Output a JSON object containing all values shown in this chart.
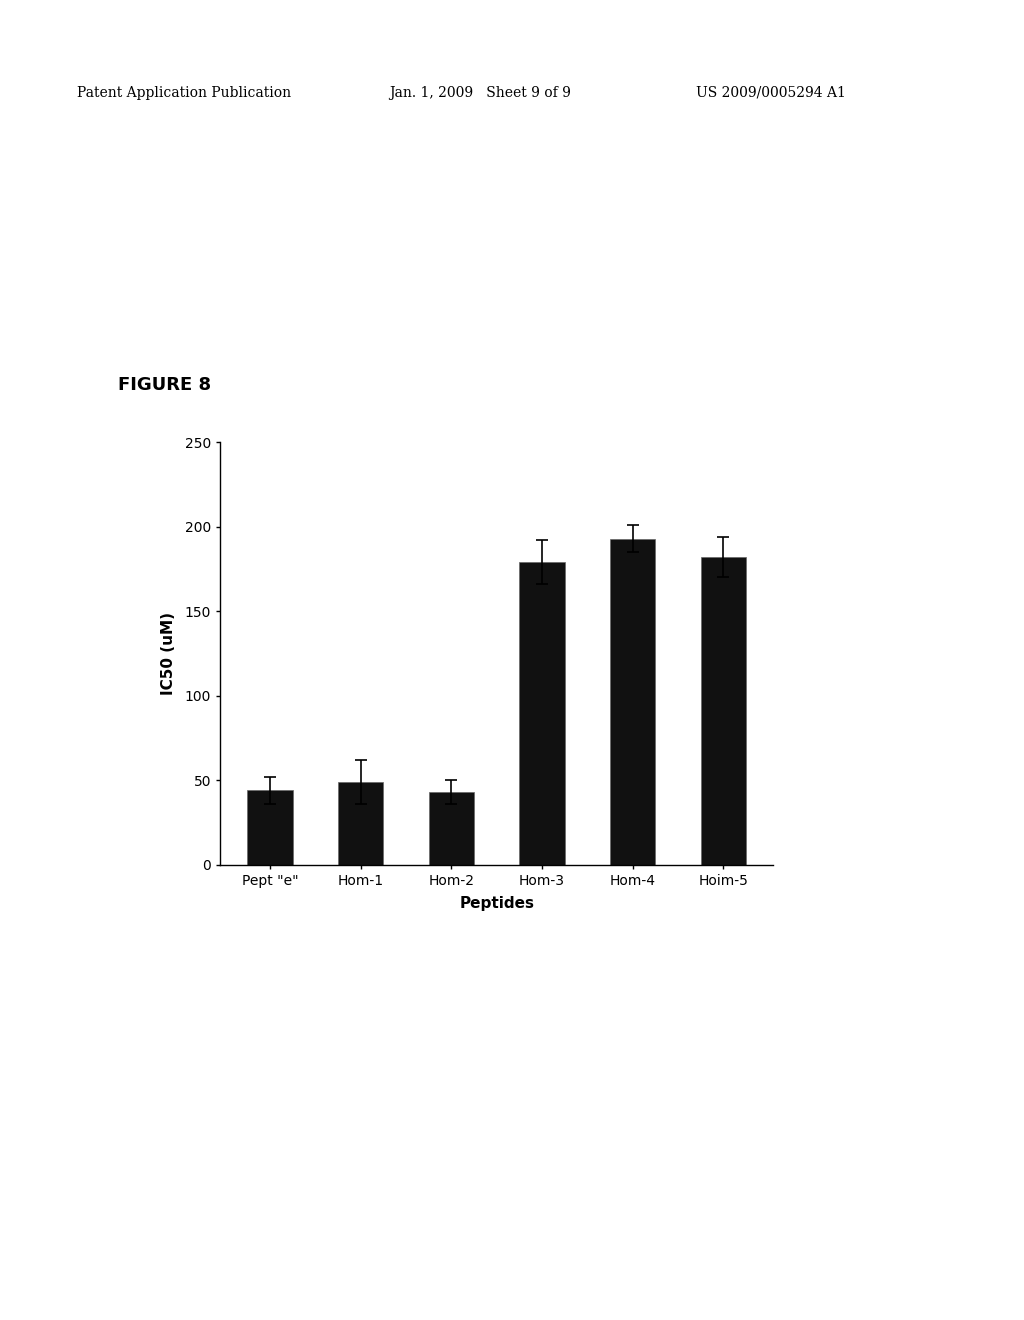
{
  "categories": [
    "Pept \"e\"",
    "Hom-1",
    "Hom-2",
    "Hom-3",
    "Hom-4",
    "Hoim-5"
  ],
  "values": [
    44,
    49,
    43,
    179,
    193,
    182
  ],
  "errors": [
    8,
    13,
    7,
    13,
    8,
    12
  ],
  "bar_color": "#111111",
  "background_color": "#ffffff",
  "title": "FIGURE 8",
  "ylabel": "IC50 (uM)",
  "xlabel": "Peptides",
  "ylim": [
    0,
    250
  ],
  "yticks": [
    0,
    50,
    100,
    150,
    200,
    250
  ],
  "header_left": "Patent Application Publication",
  "header_center": "Jan. 1, 2009   Sheet 9 of 9",
  "header_right": "US 2009/0005294 A1",
  "figure_label_fontsize": 13,
  "axis_label_fontsize": 11,
  "tick_fontsize": 10,
  "header_fontsize": 10
}
